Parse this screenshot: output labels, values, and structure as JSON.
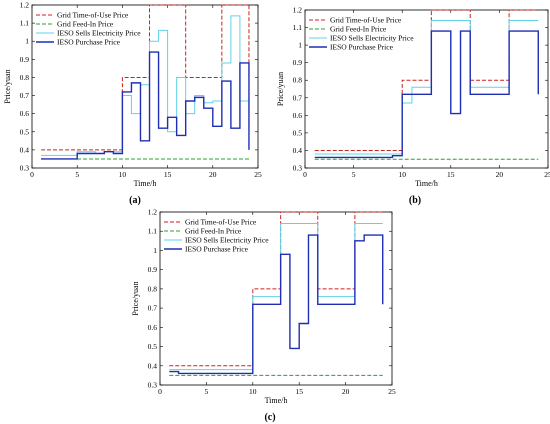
{
  "chart_data": [
    {
      "type": "line",
      "caption": "(a)",
      "xlabel": "Time/h",
      "ylabel": "Price/yuan",
      "xlim": [
        0,
        25
      ],
      "ylim": [
        0.3,
        1.2
      ],
      "xticks": [
        0,
        5,
        10,
        15,
        20,
        25
      ],
      "yticks": [
        0.3,
        0.4,
        0.5,
        0.6,
        0.7,
        0.8,
        0.9,
        1,
        1.1,
        1.2
      ],
      "legend": "top-left",
      "series": [
        {
          "name": "Grid Time-of-Use Price",
          "color": "#cc2020",
          "dash": true,
          "x": [
            1,
            2,
            3,
            4,
            5,
            6,
            7,
            8,
            9,
            10,
            11,
            12,
            13,
            14,
            15,
            16,
            17,
            18,
            19,
            20,
            21,
            22,
            23,
            24
          ],
          "values": [
            0.4,
            0.4,
            0.4,
            0.4,
            0.4,
            0.4,
            0.4,
            0.4,
            0.4,
            0.8,
            0.8,
            0.8,
            1.2,
            1.2,
            1.2,
            1.2,
            0.8,
            0.8,
            0.8,
            0.8,
            1.2,
            1.2,
            1.2,
            0.8
          ]
        },
        {
          "name": "Grid Feed-In Price",
          "color": "#2ca02c",
          "dash": true,
          "x": [
            1,
            24
          ],
          "values": [
            0.35,
            0.35
          ]
        },
        {
          "name": "IESO Sells Electricity Price",
          "color": "#5fd3e8",
          "dash": false,
          "x": [
            1,
            2,
            3,
            4,
            5,
            6,
            7,
            8,
            9,
            10,
            11,
            12,
            13,
            14,
            15,
            16,
            17,
            18,
            19,
            20,
            21,
            22,
            23,
            24
          ],
          "values": [
            0.37,
            0.37,
            0.37,
            0.37,
            0.39,
            0.39,
            0.38,
            0.39,
            0.39,
            0.7,
            0.6,
            0.76,
            1.0,
            1.06,
            0.5,
            0.8,
            0.6,
            0.7,
            0.66,
            0.67,
            0.88,
            1.14,
            0.67,
            0.51
          ]
        },
        {
          "name": "IESO Purchase Price",
          "color": "#1f2fb4",
          "dash": false,
          "x": [
            1,
            2,
            3,
            4,
            5,
            6,
            7,
            8,
            9,
            10,
            11,
            12,
            13,
            14,
            15,
            16,
            17,
            18,
            19,
            20,
            21,
            22,
            23,
            24
          ],
          "values": [
            0.35,
            0.35,
            0.35,
            0.35,
            0.38,
            0.38,
            0.38,
            0.39,
            0.38,
            0.72,
            0.77,
            0.45,
            0.94,
            0.52,
            0.58,
            0.48,
            0.67,
            0.69,
            0.63,
            0.53,
            0.78,
            0.52,
            0.88,
            0.4
          ]
        }
      ]
    },
    {
      "type": "line",
      "caption": "(b)",
      "xlabel": "Time/h",
      "ylabel": "Price/yuan",
      "xlim": [
        0,
        25
      ],
      "ylim": [
        0.3,
        1.2
      ],
      "xticks": [
        0,
        5,
        10,
        15,
        20,
        25
      ],
      "yticks": [
        0.3,
        0.4,
        0.5,
        0.6,
        0.7,
        0.8,
        0.9,
        1,
        1.1,
        1.2
      ],
      "legend": "top-left",
      "series": [
        {
          "name": "Grid Time-of-Use Price",
          "color": "#cc2020",
          "dash": true,
          "x": [
            1,
            2,
            3,
            4,
            5,
            6,
            7,
            8,
            9,
            10,
            11,
            12,
            13,
            14,
            15,
            16,
            17,
            18,
            19,
            20,
            21,
            22,
            23,
            24
          ],
          "values": [
            0.4,
            0.4,
            0.4,
            0.4,
            0.4,
            0.4,
            0.4,
            0.4,
            0.4,
            0.8,
            0.8,
            0.8,
            1.2,
            1.2,
            1.2,
            1.2,
            0.8,
            0.8,
            0.8,
            0.8,
            1.2,
            1.2,
            1.2,
            1.2
          ]
        },
        {
          "name": "Grid Feed-In Price",
          "color": "#2ca02c",
          "dash": true,
          "x": [
            1,
            24
          ],
          "values": [
            0.35,
            0.35
          ]
        },
        {
          "name": "IESO Sells Electricity Price",
          "color": "#5fd3e8",
          "dash": false,
          "x": [
            1,
            2,
            3,
            4,
            5,
            6,
            7,
            8,
            9,
            10,
            11,
            12,
            13,
            14,
            15,
            16,
            17,
            18,
            19,
            20,
            21,
            22,
            23,
            24
          ],
          "values": [
            0.38,
            0.38,
            0.38,
            0.38,
            0.38,
            0.38,
            0.38,
            0.38,
            0.38,
            0.67,
            0.76,
            0.76,
            1.14,
            1.14,
            1.14,
            1.14,
            0.76,
            0.76,
            0.76,
            0.76,
            1.14,
            1.14,
            1.14,
            1.14
          ]
        },
        {
          "name": "IESO Purchase Price",
          "color": "#1f2fb4",
          "dash": false,
          "x": [
            1,
            2,
            3,
            4,
            5,
            6,
            7,
            8,
            9,
            10,
            11,
            12,
            13,
            14,
            15,
            16,
            17,
            18,
            19,
            20,
            21,
            22,
            23,
            24
          ],
          "values": [
            0.36,
            0.36,
            0.36,
            0.36,
            0.36,
            0.36,
            0.36,
            0.36,
            0.37,
            0.72,
            0.72,
            0.72,
            1.08,
            1.08,
            0.61,
            1.08,
            0.72,
            0.72,
            0.72,
            0.72,
            1.08,
            1.08,
            1.08,
            0.72
          ]
        }
      ]
    },
    {
      "type": "line",
      "caption": "(c)",
      "xlabel": "Time/h",
      "ylabel": "Price/yuan",
      "xlim": [
        0,
        25
      ],
      "ylim": [
        0.3,
        1.2
      ],
      "xticks": [
        0,
        5,
        10,
        15,
        20,
        25
      ],
      "yticks": [
        0.3,
        0.4,
        0.5,
        0.6,
        0.7,
        0.8,
        0.9,
        1,
        1.1,
        1.2
      ],
      "legend": "top-left",
      "series": [
        {
          "name": "Grid Time-of-Use Price",
          "color": "#cc2020",
          "dash": true,
          "x": [
            1,
            2,
            3,
            4,
            5,
            6,
            7,
            8,
            9,
            10,
            11,
            12,
            13,
            14,
            15,
            16,
            17,
            18,
            19,
            20,
            21,
            22,
            23,
            24
          ],
          "values": [
            0.4,
            0.4,
            0.4,
            0.4,
            0.4,
            0.4,
            0.4,
            0.4,
            0.4,
            0.8,
            0.8,
            0.8,
            1.2,
            1.2,
            1.2,
            1.2,
            0.8,
            0.8,
            0.8,
            0.8,
            1.2,
            1.2,
            1.2,
            1.2
          ]
        },
        {
          "name": "Grid Feed-In Price",
          "color": "#2ca02c",
          "dash": true,
          "x": [
            1,
            24
          ],
          "values": [
            0.35,
            0.35
          ]
        },
        {
          "name": "IESO Sells Electricity Price",
          "color": "#5fd3e8",
          "dash": false,
          "x": [
            1,
            2,
            3,
            4,
            5,
            6,
            7,
            8,
            9,
            10,
            11,
            12,
            13,
            14,
            15,
            16,
            17,
            18,
            19,
            20,
            21,
            22,
            23,
            24
          ],
          "values": [
            0.38,
            0.38,
            0.38,
            0.38,
            0.38,
            0.38,
            0.38,
            0.38,
            0.38,
            0.76,
            0.76,
            0.76,
            1.14,
            1.14,
            1.14,
            1.14,
            0.76,
            0.76,
            0.76,
            0.76,
            1.14,
            1.14,
            1.14,
            1.14
          ]
        },
        {
          "name": "IESO Purchase Price",
          "color": "#1f2fb4",
          "dash": false,
          "x": [
            1,
            2,
            3,
            4,
            5,
            6,
            7,
            8,
            9,
            10,
            11,
            12,
            13,
            14,
            15,
            16,
            17,
            18,
            19,
            20,
            21,
            22,
            23,
            24
          ],
          "values": [
            0.37,
            0.36,
            0.36,
            0.36,
            0.36,
            0.36,
            0.36,
            0.36,
            0.36,
            0.72,
            0.72,
            0.72,
            0.98,
            0.49,
            0.62,
            1.08,
            0.72,
            0.72,
            0.72,
            0.72,
            1.05,
            1.08,
            1.08,
            0.72
          ]
        }
      ]
    }
  ]
}
